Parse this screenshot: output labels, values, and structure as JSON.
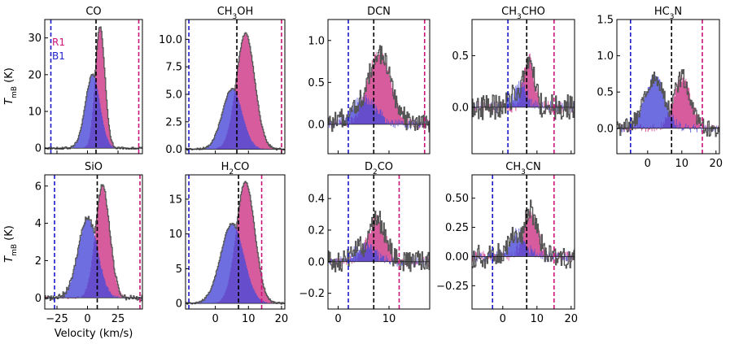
{
  "figure": {
    "shared_ylabel": "T_mB (K)",
    "shared_xlabel": "Velocity (km/s)",
    "legend": [
      {
        "label": "R1",
        "color": "#cc1177"
      },
      {
        "label": "B1",
        "color": "#2222cc"
      }
    ]
  },
  "colors": {
    "red_fill": "#d0408c",
    "blue_fill": "#4a4ad8",
    "spectrum_line": "#555555",
    "dashed_black": "#000000",
    "dashed_blue": "#1a1acc",
    "dashed_magenta": "#cc1177"
  },
  "chart_data": [
    {
      "type": "area",
      "title": "CO",
      "title_sub": "",
      "title_parts": [
        "CO"
      ],
      "xlim": [
        -35,
        45
      ],
      "ylim": [
        -1.5,
        35
      ],
      "yticks": [
        0,
        10,
        20,
        30
      ],
      "ytick_labels": [
        "0",
        "10",
        "20",
        "30"
      ],
      "xticks": [
        -25,
        0,
        25
      ],
      "xtick_labels": [
        "−25",
        "0",
        "25"
      ],
      "show_xticklabels": false,
      "vsys": 7,
      "vblue": -30,
      "vred": 42,
      "peak_blue": 20,
      "peak_red": 33,
      "center_blue": 4,
      "center_red": 10,
      "width_blue": 6,
      "width_red": 4,
      "noise": 0.3,
      "legend": true
    },
    {
      "type": "area",
      "title": "CH3OH",
      "title_parts": [
        "CH",
        "3",
        "OH"
      ],
      "xlim": [
        -9,
        21
      ],
      "ylim": [
        -0.4,
        11.8
      ],
      "yticks": [
        0,
        2.5,
        5,
        7.5,
        10
      ],
      "ytick_labels": [
        "0.0",
        "2.5",
        "5.0",
        "7.5",
        "10.0"
      ],
      "xticks": [
        0,
        10,
        20
      ],
      "xtick_labels": [
        "0",
        "10",
        "20"
      ],
      "show_xticklabels": false,
      "vsys": 6.5,
      "vblue": -8,
      "vred": 20,
      "peak_blue": 5.5,
      "peak_red": 10.5,
      "center_blue": 5,
      "center_red": 9,
      "width_blue": 3,
      "width_red": 2.8,
      "noise": 0.1
    },
    {
      "type": "area",
      "title": "DCN",
      "title_parts": [
        "DCN"
      ],
      "xlim": [
        -2,
        18
      ],
      "ylim": [
        -0.35,
        1.25
      ],
      "yticks": [
        0,
        0.5,
        1.0
      ],
      "ytick_labels": [
        "0.0",
        "0.5",
        "1.0"
      ],
      "xticks": [
        0,
        10
      ],
      "xtick_labels": [
        "0",
        "10"
      ],
      "show_xticklabels": false,
      "vsys": 7,
      "vblue": 2,
      "vred": 17,
      "peak_blue": 0.3,
      "peak_red": 0.85,
      "center_blue": 5,
      "center_red": 8,
      "width_blue": 2.5,
      "width_red": 2.3,
      "noise": 0.12
    },
    {
      "type": "area",
      "title": "CH3CHO",
      "title_parts": [
        "CH",
        "3",
        "CHO"
      ],
      "xlim": [
        -9,
        21
      ],
      "ylim": [
        -0.45,
        0.85
      ],
      "yticks": [
        0,
        0.5
      ],
      "ytick_labels": [
        "0.0",
        "0.5"
      ],
      "xticks": [
        0,
        10,
        20
      ],
      "xtick_labels": [
        "0",
        "10",
        "20"
      ],
      "show_xticklabels": false,
      "vsys": 7,
      "vblue": 1.5,
      "vred": 15,
      "peak_blue": 0.2,
      "peak_red": 0.5,
      "center_blue": 5,
      "center_red": 7.5,
      "width_blue": 2,
      "width_red": 1.5,
      "noise": 0.12
    },
    {
      "type": "area",
      "title": "HC3N",
      "title_parts": [
        "HC",
        "3",
        "N"
      ],
      "xlim": [
        -9,
        21
      ],
      "ylim": [
        -0.35,
        1.5
      ],
      "yticks": [
        0,
        0.5,
        1.0,
        1.5
      ],
      "ytick_labels": [
        "0.0",
        "0.5",
        "1.0",
        "1.5"
      ],
      "xticks": [
        0,
        10,
        20
      ],
      "xtick_labels": [
        "0",
        "10",
        "20"
      ],
      "show_xticklabels": true,
      "vsys": 7,
      "vblue": -5,
      "vred": 16,
      "peak_blue": 0.7,
      "peak_red": 0.7,
      "center_blue": 2,
      "center_red": 10,
      "width_blue": 3,
      "width_red": 2.5,
      "noise": 0.12
    },
    {
      "type": "area",
      "title": "SiO",
      "title_parts": [
        "SiO"
      ],
      "xlim": [
        -35,
        45
      ],
      "ylim": [
        -0.6,
        6.6
      ],
      "yticks": [
        0,
        2,
        4,
        6
      ],
      "ytick_labels": [
        "0",
        "2",
        "4",
        "6"
      ],
      "xticks": [
        -25,
        0,
        25
      ],
      "xtick_labels": [
        "−25",
        "0",
        "25"
      ],
      "show_xticklabels": true,
      "vsys": 8,
      "vblue": -27,
      "vred": 43,
      "peak_blue": 4.3,
      "peak_red": 6.0,
      "center_blue": 0,
      "center_red": 12,
      "width_blue": 8,
      "width_red": 6,
      "noise": 0.15
    },
    {
      "type": "area",
      "title": "H2CO",
      "title_parts": [
        "H",
        "2",
        "CO"
      ],
      "xlim": [
        -9,
        21
      ],
      "ylim": [
        -0.8,
        18.5
      ],
      "yticks": [
        0,
        5,
        10,
        15
      ],
      "ytick_labels": [
        "0",
        "5",
        "10",
        "15"
      ],
      "xticks": [
        0,
        10,
        20
      ],
      "xtick_labels": [
        "0",
        "10",
        "20"
      ],
      "show_xticklabels": true,
      "vsys": 7,
      "vblue": -8,
      "vred": 14,
      "peak_blue": 11.5,
      "peak_red": 17.5,
      "center_blue": 5,
      "center_red": 9,
      "width_blue": 3.5,
      "width_red": 2.8,
      "noise": 0.15
    },
    {
      "type": "area",
      "title": "D2CO",
      "title_parts": [
        "D",
        "2",
        "CO"
      ],
      "xlim": [
        -2,
        18
      ],
      "ylim": [
        -0.3,
        0.55
      ],
      "yticks": [
        -0.2,
        0,
        0.2,
        0.4
      ],
      "ytick_labels": [
        "−0.2",
        "0.0",
        "0.2",
        "0.4"
      ],
      "xticks": [
        0,
        10
      ],
      "xtick_labels": [
        "0",
        "10"
      ],
      "show_xticklabels": true,
      "vsys": 7,
      "vblue": 2,
      "vred": 12,
      "peak_blue": 0.1,
      "peak_red": 0.27,
      "center_blue": 5,
      "center_red": 7.5,
      "width_blue": 2,
      "width_red": 1.7,
      "noise": 0.07
    },
    {
      "type": "area",
      "title": "CH3CN",
      "title_parts": [
        "CH",
        "3",
        "CN"
      ],
      "xlim": [
        -9,
        21
      ],
      "ylim": [
        -0.45,
        0.7
      ],
      "yticks": [
        -0.25,
        0,
        0.25,
        0.5
      ],
      "ytick_labels": [
        "−0.25",
        "0.00",
        "0.25",
        "0.50"
      ],
      "xticks": [
        0,
        10,
        20
      ],
      "xtick_labels": [
        "0",
        "10",
        "20"
      ],
      "show_xticklabels": true,
      "vsys": 7,
      "vblue": -3,
      "vred": 15,
      "peak_blue": 0.2,
      "peak_red": 0.4,
      "center_blue": 4,
      "center_red": 8,
      "width_blue": 2.5,
      "width_red": 2,
      "noise": 0.1
    }
  ]
}
